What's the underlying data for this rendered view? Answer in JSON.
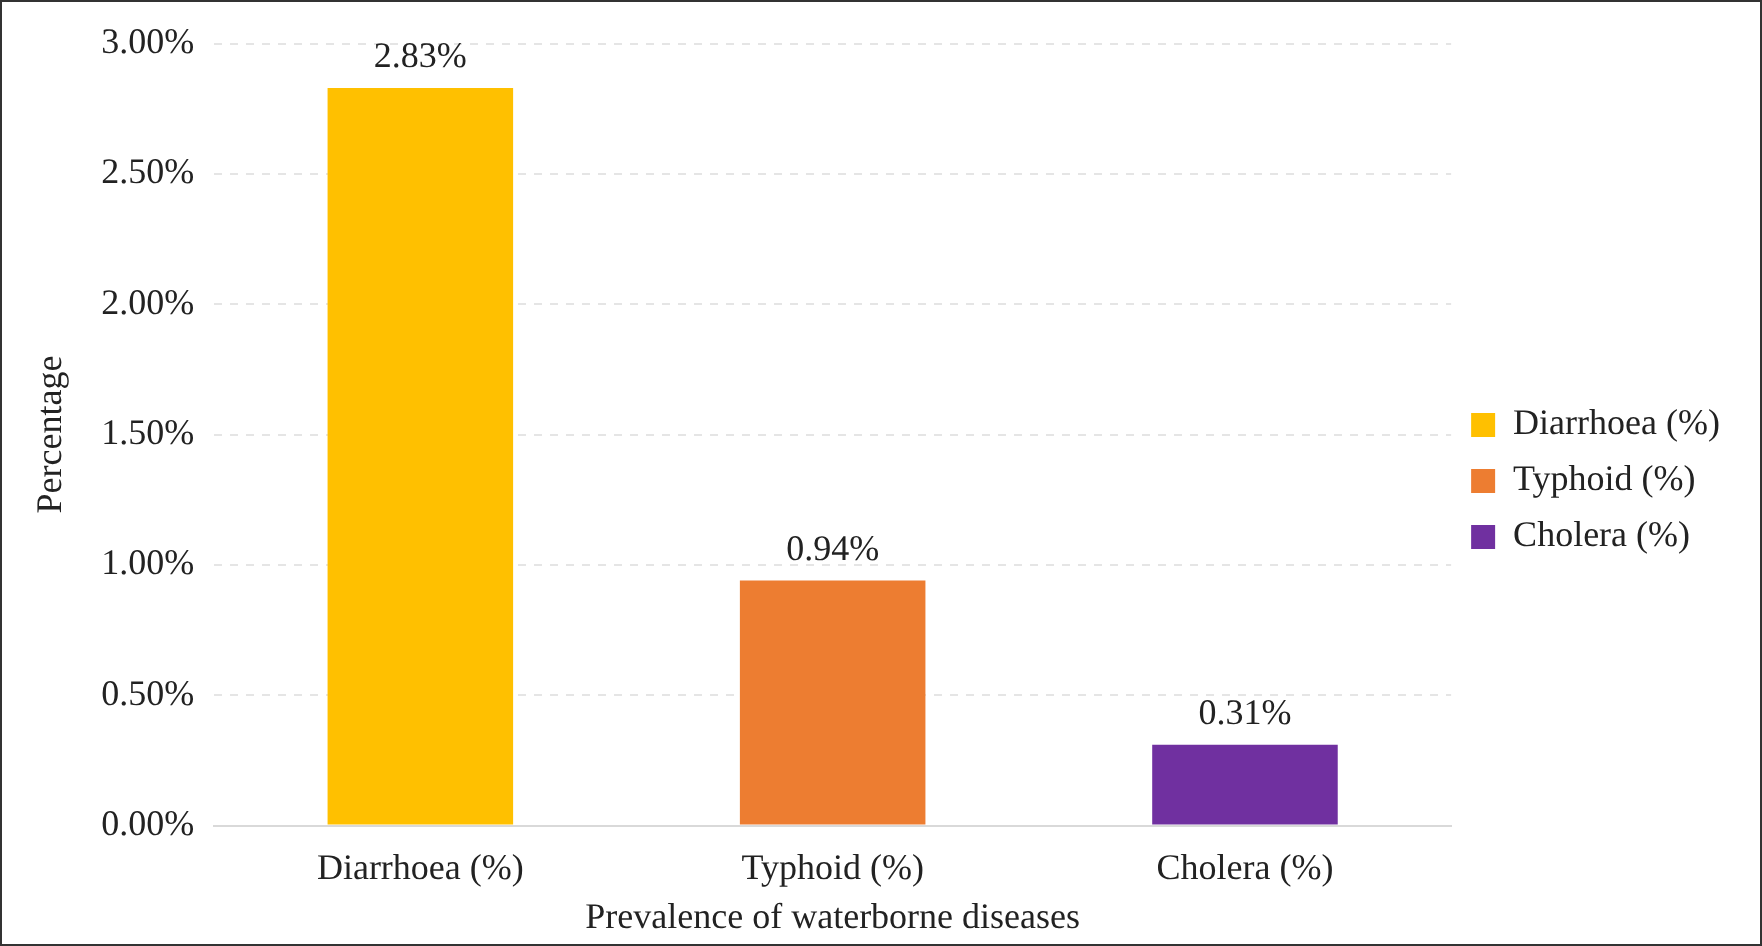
{
  "chart_data": {
    "type": "bar",
    "xlabel": "Prevalence of waterborne diseases",
    "ylabel": "Percentage",
    "categories": [
      "Diarrhoea (%)",
      "Typhoid (%)",
      "Cholera (%)"
    ],
    "series": [
      {
        "name": "Diarrhoea (%)",
        "color": "#ffc000",
        "values": [
          2.83,
          null,
          null
        ],
        "value_labels": [
          "2.83%",
          null,
          null
        ]
      },
      {
        "name": "Typhoid (%)",
        "color": "#ed7d31",
        "values": [
          null,
          0.94,
          null
        ],
        "value_labels": [
          null,
          "0.94%",
          null
        ]
      },
      {
        "name": "Cholera (%)",
        "color": "#7030a0",
        "values": [
          null,
          null,
          0.31
        ],
        "value_labels": [
          null,
          null,
          "0.31%"
        ]
      }
    ],
    "ylim": [
      0,
      3
    ],
    "yticks": [
      {
        "value": 0,
        "label": "0.00%"
      },
      {
        "value": 0.5,
        "label": "0.50%"
      },
      {
        "value": 1,
        "label": "1.00%"
      },
      {
        "value": 1.5,
        "label": "1.50%"
      },
      {
        "value": 2,
        "label": "2.00%"
      },
      {
        "value": 2.5,
        "label": "2.50%"
      },
      {
        "value": 3,
        "label": "3.00%"
      }
    ],
    "grid": "y",
    "legend": "right"
  }
}
